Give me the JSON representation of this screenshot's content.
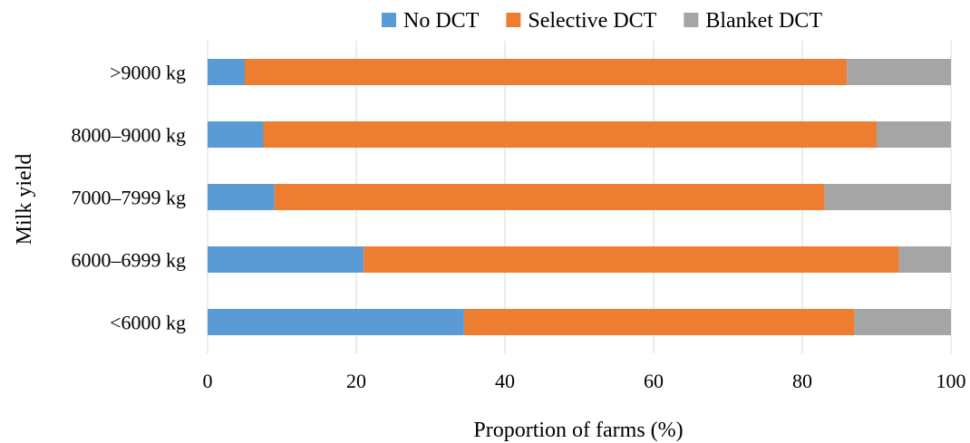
{
  "chart_data": {
    "type": "bar",
    "orientation": "horizontal",
    "stacked": true,
    "categories": [
      ">9000 kg",
      "8000–9000 kg",
      "7000–7999 kg",
      "6000–6999 kg",
      "<6000 kg"
    ],
    "series": [
      {
        "name": "No DCT",
        "color": "#5b9bd5",
        "values": [
          5,
          7.5,
          9,
          21,
          34.5
        ]
      },
      {
        "name": "Selective DCT",
        "color": "#ed7d31",
        "values": [
          81,
          82.5,
          74,
          72,
          52.5
        ]
      },
      {
        "name": "Blanket DCT",
        "color": "#a5a5a5",
        "values": [
          14,
          10,
          17,
          7,
          13
        ]
      }
    ],
    "xlabel": "Proportion of farms (%)",
    "ylabel": "Milk yield",
    "xlim": [
      0,
      100
    ],
    "xticks": [
      0,
      20,
      40,
      60,
      80,
      100
    ],
    "grid": "vertical",
    "legend": "top-center"
  }
}
